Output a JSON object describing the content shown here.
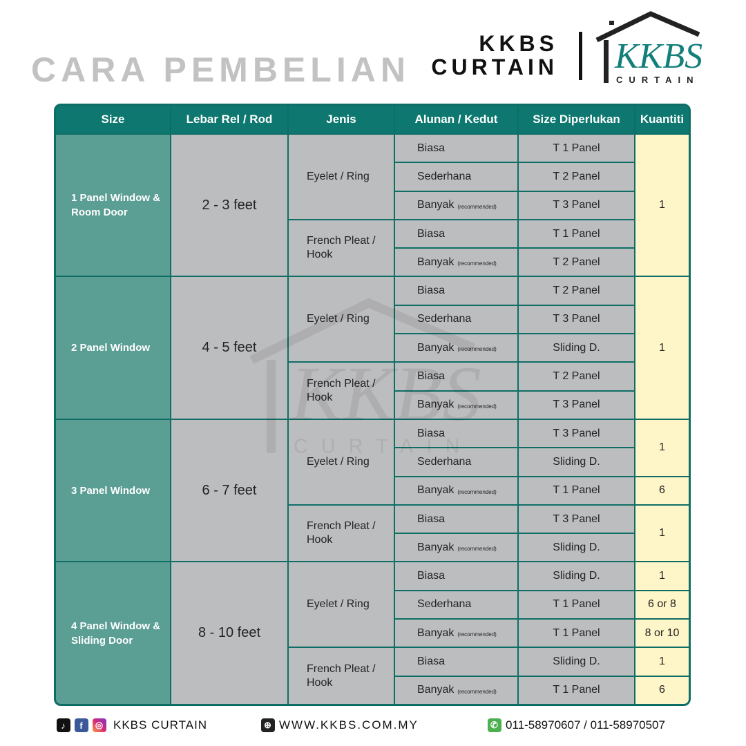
{
  "header": {
    "title": "CARA PEMBELIAN",
    "brand_line1": "KKBS",
    "brand_line2": "CURTAIN",
    "logo_text": "KKBS",
    "logo_sub": "CURTAIN"
  },
  "colors": {
    "teal": "#0e7870",
    "size_col": "#5a9e94",
    "gray": "#bcbdbf",
    "qty": "#fef5c8",
    "title_gray": "#c2c2c2"
  },
  "table": {
    "headers": [
      "Size",
      "Lebar Rel / Rod",
      "Jenis",
      "Alunan / Kedut",
      "Size Diperlukan",
      "Kuantiti"
    ],
    "groups": [
      {
        "size": "1 Panel Window & Room Door",
        "rod": "2  - 3 feet",
        "rows": [
          {
            "jenis": "Eyelet / Ring",
            "alunan": "Biasa",
            "need": "T 1 Panel"
          },
          {
            "alunan": "Sederhana",
            "need": "T 2 Panel"
          },
          {
            "alunan": "Banyak",
            "note": "(recommended)",
            "need": "T 3 Panel"
          },
          {
            "jenis": "French Pleat / Hook",
            "alunan": "Biasa",
            "need": "T 1 Panel"
          },
          {
            "alunan": "Banyak",
            "note": "(recommended)",
            "need": "T 2 Panel"
          }
        ],
        "qty": [
          {
            "value": "1",
            "span": 5
          }
        ]
      },
      {
        "size": "2 Panel Window",
        "rod": "4 - 5 feet",
        "rows": [
          {
            "jenis": "Eyelet / Ring",
            "alunan": "Biasa",
            "need": "T 2 Panel"
          },
          {
            "alunan": "Sederhana",
            "need": "T 3 Panel"
          },
          {
            "alunan": "Banyak",
            "note": "(recommended)",
            "need": "Sliding D."
          },
          {
            "jenis": "French Pleat / Hook",
            "alunan": "Biasa",
            "need": "T 2 Panel"
          },
          {
            "alunan": "Banyak",
            "note": "(recommended)",
            "need": "T 3 Panel"
          }
        ],
        "qty": [
          {
            "value": "1",
            "span": 5
          }
        ]
      },
      {
        "size": "3 Panel Window",
        "rod": "6 - 7 feet",
        "rows": [
          {
            "jenis": "Eyelet / Ring",
            "alunan": "Biasa",
            "need": "T 3 Panel"
          },
          {
            "alunan": "Sederhana",
            "need": "Sliding D."
          },
          {
            "alunan": "Banyak",
            "note": "(recommended)",
            "need": "T 1 Panel"
          },
          {
            "jenis": "French Pleat / Hook",
            "alunan": "Biasa",
            "need": "T 3 Panel"
          },
          {
            "alunan": "Banyak",
            "note": "(recommended)",
            "need": "Sliding D."
          }
        ],
        "qty": [
          {
            "value": "1",
            "span": 2
          },
          {
            "value": "6",
            "span": 1
          },
          {
            "value": "1",
            "span": 2
          }
        ]
      },
      {
        "size": "4 Panel Window & Sliding Door",
        "rod": "8 - 10 feet",
        "rows": [
          {
            "jenis": "Eyelet / Ring",
            "alunan": "Biasa",
            "need": "Sliding D."
          },
          {
            "alunan": "Sederhana",
            "need": "T 1 Panel"
          },
          {
            "alunan": "Banyak",
            "note": "(recommended)",
            "need": "T 1 Panel"
          },
          {
            "jenis": "French Pleat / Hook",
            "alunan": "Biasa",
            "need": "Sliding D."
          },
          {
            "alunan": "Banyak",
            "note": "(recommended)",
            "need": "T 1 Panel"
          }
        ],
        "qty": [
          {
            "value": "1",
            "span": 1
          },
          {
            "value": "6 or 8",
            "span": 1
          },
          {
            "value": "8 or 10",
            "span": 1
          },
          {
            "value": "1",
            "span": 1
          },
          {
            "value": "6",
            "span": 1
          }
        ]
      }
    ]
  },
  "footer": {
    "social": "KKBS CURTAIN",
    "website": "WWW.KKBS.COM.MY",
    "phone": "011-58970607 / 011-58970507",
    "icons": [
      "tiktok-icon",
      "facebook-icon",
      "instagram-icon",
      "globe-icon",
      "whatsapp-icon"
    ]
  }
}
